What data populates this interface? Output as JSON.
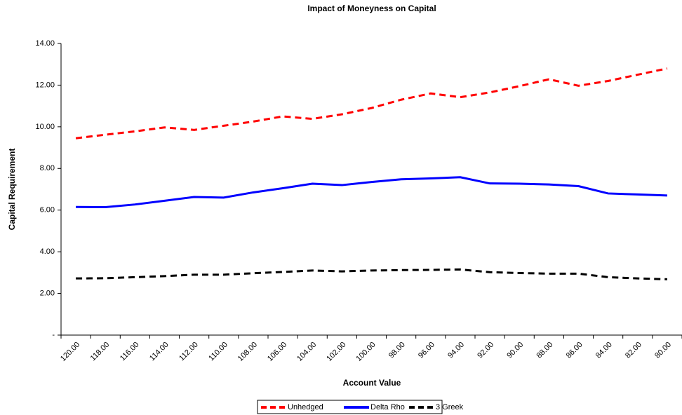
{
  "chart_data": {
    "type": "line",
    "title": "Impact of Moneyness on Capital",
    "x_label": "Account Value",
    "y_label": "Capital Requirement",
    "categories": [
      "120.00",
      "118.00",
      "116.00",
      "114.00",
      "112.00",
      "110.00",
      "108.00",
      "106.00",
      "104.00",
      "102.00",
      "100.00",
      "98.00",
      "96.00",
      "94.00",
      "92.00",
      "90.00",
      "88.00",
      "86.00",
      "84.00",
      "82.00",
      "80.00"
    ],
    "series": [
      {
        "name": "Unhedged",
        "color": "#ff0000",
        "dash": true,
        "values": [
          9.45,
          9.62,
          9.78,
          9.97,
          9.85,
          10.05,
          10.25,
          10.5,
          10.38,
          10.6,
          10.9,
          11.3,
          11.6,
          11.42,
          11.65,
          11.95,
          12.28,
          11.97,
          12.2,
          12.5,
          12.8
        ]
      },
      {
        "name": "Delta Rho",
        "color": "#0000ff",
        "dash": false,
        "values": [
          6.15,
          6.14,
          6.27,
          6.45,
          6.63,
          6.6,
          6.85,
          7.05,
          7.27,
          7.2,
          7.35,
          7.48,
          7.52,
          7.58,
          7.28,
          7.27,
          7.23,
          7.15,
          6.8,
          6.75,
          6.7
        ]
      },
      {
        "name": "3 Greek",
        "color": "#000000",
        "dash": true,
        "values": [
          2.72,
          2.73,
          2.78,
          2.83,
          2.9,
          2.9,
          2.97,
          3.03,
          3.1,
          3.06,
          3.1,
          3.12,
          3.13,
          3.15,
          3.02,
          2.98,
          2.95,
          2.95,
          2.78,
          2.72,
          2.68
        ]
      }
    ],
    "ylim": [
      0,
      14
    ],
    "yticks": [
      {
        "value": 0,
        "label": "-"
      },
      {
        "value": 2,
        "label": "2.00"
      },
      {
        "value": 4,
        "label": "4.00"
      },
      {
        "value": 6,
        "label": "6.00"
      },
      {
        "value": 8,
        "label": "8.00"
      },
      {
        "value": 10,
        "label": "10.00"
      },
      {
        "value": 12,
        "label": "12.00"
      },
      {
        "value": 14,
        "label": "14.00"
      }
    ],
    "legend": "bottom"
  }
}
